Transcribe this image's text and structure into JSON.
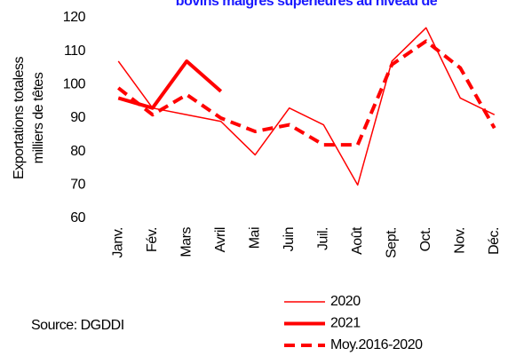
{
  "chart_data": {
    "type": "line",
    "title": "bovins maigres supérieures au niveau de",
    "y_label": [
      "Exportations totaless",
      "milliers de têtes"
    ],
    "source": "Source: DGDDI",
    "categories": [
      "Janv.",
      "Fév.",
      "Mars",
      "Avril",
      "Mai",
      "Juin",
      "Juil.",
      "Août",
      "Sept.",
      "Oct.",
      "Nov.",
      "Déc."
    ],
    "series": [
      {
        "name": "2020",
        "color": "#ff0000",
        "values": [
          107,
          93,
          91,
          89,
          79,
          93,
          88,
          70,
          107,
          117,
          96,
          91
        ]
      },
      {
        "name": "2021",
        "color": "#ff0000",
        "values": [
          96,
          93,
          107,
          98,
          null,
          null,
          null,
          null,
          null,
          null,
          null,
          null
        ]
      },
      {
        "name": "Moy.2016-2020",
        "color": "#ff0000",
        "values": [
          99,
          91,
          97,
          90,
          86,
          88,
          82,
          82,
          106,
          113,
          105,
          87
        ]
      }
    ],
    "ylim": [
      60,
      120
    ],
    "yticks": [
      60,
      70,
      80,
      90,
      100,
      110,
      120
    ],
    "grid": false
  }
}
